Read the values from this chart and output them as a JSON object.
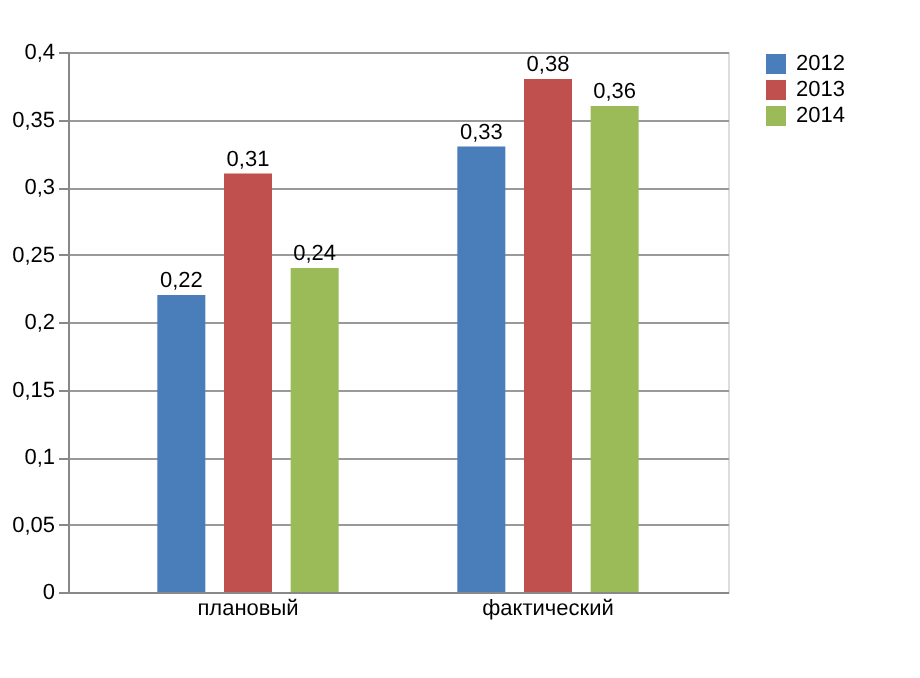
{
  "chart_data": {
    "type": "bar",
    "categories": [
      "плановый",
      "фактический"
    ],
    "series": [
      {
        "name": "2012",
        "color": "#4a7ebb",
        "values": [
          0.22,
          0.33
        ],
        "value_labels": [
          "0,22",
          "0,33"
        ]
      },
      {
        "name": "2013",
        "color": "#c0504d",
        "values": [
          0.31,
          0.38
        ],
        "value_labels": [
          "0,31",
          "0,38"
        ]
      },
      {
        "name": "2014",
        "color": "#9bbb59",
        "values": [
          0.24,
          0.36
        ],
        "value_labels": [
          "0,24",
          "0,36"
        ]
      }
    ],
    "ylim": [
      0,
      0.4
    ],
    "yticks": [
      0,
      {
        "value": 0.05,
        "label": "0,05"
      },
      {
        "value": 0.1,
        "label": "0,1"
      },
      {
        "value": 0.15,
        "label": "0,15"
      },
      {
        "value": 0.2,
        "label": "0,2"
      },
      {
        "value": 0.25,
        "label": "0,25"
      },
      {
        "value": 0.3,
        "label": "0,3"
      },
      {
        "value": 0.35,
        "label": "0,35"
      },
      {
        "value": 0.4,
        "label": "0,4"
      }
    ],
    "grid": "y",
    "legend": "right"
  }
}
